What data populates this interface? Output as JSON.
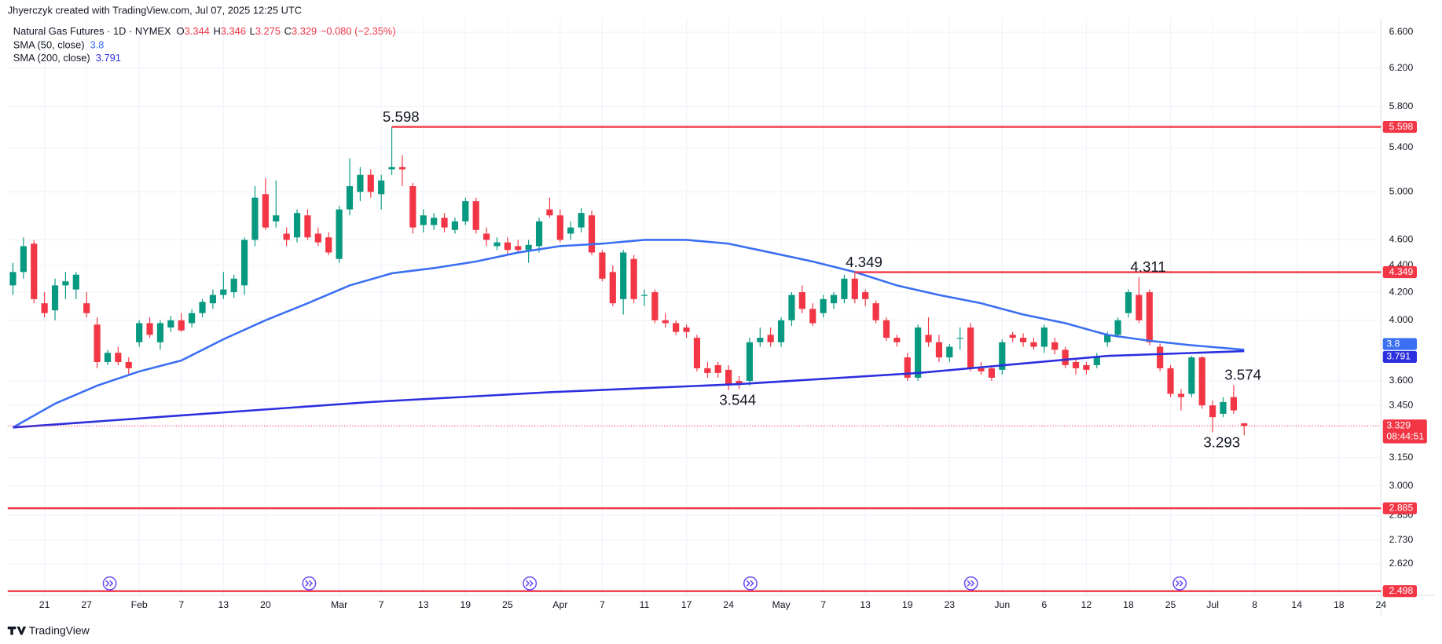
{
  "header": {
    "credit": "Jhyerczyk created with TradingView.com, Jul 07, 2025 12:25 UTC",
    "symbol": "Natural Gas Futures · 1D · NYMEX",
    "ohlc_labels": [
      "O",
      "H",
      "L",
      "C"
    ],
    "change": "−0.080 (−2.35%)",
    "brand": "TradingView"
  },
  "chart_data": {
    "type": "candlestick",
    "log_scale": true,
    "grid": true,
    "colors": {
      "up": "#089981",
      "down": "#f23645",
      "level": "#f23645"
    },
    "xlim": [
      -0.5,
      130
    ],
    "ylim": [
      2.48,
      6.76
    ],
    "yticks": [
      {
        "value": 6.6,
        "label": "6.600"
      },
      {
        "value": 6.2,
        "label": "6.200"
      },
      {
        "value": 5.8,
        "label": "5.800"
      },
      {
        "value": 5.4,
        "label": "5.400"
      },
      {
        "value": 5.0,
        "label": "5.000"
      },
      {
        "value": 4.6,
        "label": "4.600"
      },
      {
        "value": 4.4,
        "label": "4.400"
      },
      {
        "value": 4.2,
        "label": "4.200"
      },
      {
        "value": 4.0,
        "label": "4.000"
      },
      {
        "value": 3.6,
        "label": "3.600"
      },
      {
        "value": 3.45,
        "label": "3.450"
      },
      {
        "value": 3.15,
        "label": "3.150"
      },
      {
        "value": 3.0,
        "label": "3.000"
      },
      {
        "value": 2.85,
        "label": "2.850"
      },
      {
        "value": 2.73,
        "label": "2.730"
      },
      {
        "value": 2.62,
        "label": "2.620"
      }
    ],
    "xticks": [
      {
        "value": 3,
        "label": "21"
      },
      {
        "value": 7,
        "label": "27"
      },
      {
        "value": 12,
        "label": "Feb"
      },
      {
        "value": 16,
        "label": "7"
      },
      {
        "value": 20,
        "label": "13"
      },
      {
        "value": 24,
        "label": "20"
      },
      {
        "value": 31,
        "label": "Mar"
      },
      {
        "value": 35,
        "label": "7"
      },
      {
        "value": 39,
        "label": "13"
      },
      {
        "value": 43,
        "label": "19"
      },
      {
        "value": 47,
        "label": "25"
      },
      {
        "value": 52,
        "label": "Apr"
      },
      {
        "value": 56,
        "label": "7"
      },
      {
        "value": 60,
        "label": "11"
      },
      {
        "value": 64,
        "label": "17"
      },
      {
        "value": 68,
        "label": "24"
      },
      {
        "value": 73,
        "label": "May"
      },
      {
        "value": 77,
        "label": "7"
      },
      {
        "value": 81,
        "label": "13"
      },
      {
        "value": 85,
        "label": "19"
      },
      {
        "value": 89,
        "label": "23"
      },
      {
        "value": 94,
        "label": "Jun"
      },
      {
        "value": 98,
        "label": "6"
      },
      {
        "value": 102,
        "label": "12"
      },
      {
        "value": 106,
        "label": "18"
      },
      {
        "value": 110,
        "label": "25"
      },
      {
        "value": 114,
        "label": "Jul"
      },
      {
        "value": 118,
        "label": "8"
      },
      {
        "value": 122,
        "label": "14"
      },
      {
        "value": 126,
        "label": "18"
      },
      {
        "value": 130,
        "label": "24"
      }
    ],
    "candles": [
      [
        4.25,
        4.42,
        4.18,
        4.35
      ],
      [
        4.35,
        4.62,
        4.3,
        4.55
      ],
      [
        4.57,
        4.6,
        4.12,
        4.15
      ],
      [
        4.12,
        4.2,
        4.02,
        4.05
      ],
      [
        4.07,
        4.3,
        4.0,
        4.25
      ],
      [
        4.25,
        4.35,
        4.15,
        4.28
      ],
      [
        4.22,
        4.35,
        4.15,
        4.33
      ],
      [
        4.12,
        4.2,
        4.02,
        4.05
      ],
      [
        3.97,
        4.02,
        3.68,
        3.72
      ],
      [
        3.72,
        3.8,
        3.7,
        3.78
      ],
      [
        3.78,
        3.82,
        3.7,
        3.72
      ],
      [
        3.72,
        3.75,
        3.64,
        3.68
      ],
      [
        3.85,
        4.0,
        3.82,
        3.98
      ],
      [
        3.98,
        4.02,
        3.88,
        3.9
      ],
      [
        3.85,
        4.0,
        3.8,
        3.98
      ],
      [
        3.95,
        4.03,
        3.92,
        4.0
      ],
      [
        4.0,
        4.05,
        3.92,
        3.93
      ],
      [
        3.98,
        4.08,
        3.95,
        4.05
      ],
      [
        4.05,
        4.15,
        4.02,
        4.13
      ],
      [
        4.12,
        4.22,
        4.08,
        4.18
      ],
      [
        4.18,
        4.35,
        4.15,
        4.22
      ],
      [
        4.2,
        4.33,
        4.16,
        4.3
      ],
      [
        4.25,
        4.62,
        4.18,
        4.6
      ],
      [
        4.6,
        5.05,
        4.55,
        4.95
      ],
      [
        4.98,
        5.12,
        4.68,
        4.7
      ],
      [
        4.75,
        5.1,
        4.7,
        4.8
      ],
      [
        4.65,
        4.7,
        4.55,
        4.6
      ],
      [
        4.62,
        4.85,
        4.58,
        4.82
      ],
      [
        4.8,
        4.85,
        4.6,
        4.62
      ],
      [
        4.65,
        4.7,
        4.55,
        4.58
      ],
      [
        4.62,
        4.66,
        4.48,
        4.5
      ],
      [
        4.45,
        4.88,
        4.42,
        4.85
      ],
      [
        4.85,
        5.3,
        4.8,
        5.05
      ],
      [
        5.0,
        5.22,
        4.92,
        5.15
      ],
      [
        5.15,
        5.2,
        4.95,
        5.0
      ],
      [
        4.98,
        5.15,
        4.85,
        5.1
      ],
      [
        5.2,
        5.598,
        5.15,
        5.22
      ],
      [
        5.22,
        5.33,
        5.05,
        5.2
      ],
      [
        5.05,
        5.08,
        4.65,
        4.7
      ],
      [
        4.72,
        4.85,
        4.66,
        4.8
      ],
      [
        4.72,
        4.82,
        4.68,
        4.78
      ],
      [
        4.78,
        4.82,
        4.66,
        4.7
      ],
      [
        4.68,
        4.78,
        4.65,
        4.75
      ],
      [
        4.75,
        4.95,
        4.72,
        4.92
      ],
      [
        4.92,
        4.95,
        4.65,
        4.68
      ],
      [
        4.65,
        4.7,
        4.55,
        4.6
      ],
      [
        4.55,
        4.62,
        4.52,
        4.58
      ],
      [
        4.58,
        4.62,
        4.48,
        4.52
      ],
      [
        4.55,
        4.6,
        4.5,
        4.52
      ],
      [
        4.52,
        4.6,
        4.42,
        4.56
      ],
      [
        4.55,
        4.78,
        4.5,
        4.75
      ],
      [
        4.85,
        4.95,
        4.78,
        4.8
      ],
      [
        4.8,
        4.85,
        4.58,
        4.6
      ],
      [
        4.65,
        4.75,
        4.6,
        4.7
      ],
      [
        4.7,
        4.86,
        4.66,
        4.82
      ],
      [
        4.8,
        4.84,
        4.48,
        4.5
      ],
      [
        4.5,
        4.52,
        4.28,
        4.3
      ],
      [
        4.35,
        4.4,
        4.1,
        4.12
      ],
      [
        4.15,
        4.52,
        4.04,
        4.5
      ],
      [
        4.45,
        4.48,
        4.12,
        4.15
      ],
      [
        4.18,
        4.22,
        4.1,
        4.18
      ],
      [
        4.2,
        4.22,
        3.98,
        4.0
      ],
      [
        4.0,
        4.05,
        3.95,
        3.98
      ],
      [
        3.98,
        4.0,
        3.9,
        3.92
      ],
      [
        3.95,
        3.97,
        3.88,
        3.92
      ],
      [
        3.88,
        3.9,
        3.66,
        3.68
      ],
      [
        3.68,
        3.72,
        3.62,
        3.65
      ],
      [
        3.7,
        3.72,
        3.62,
        3.65
      ],
      [
        3.67,
        3.7,
        3.544,
        3.58
      ],
      [
        3.6,
        3.63,
        3.55,
        3.58
      ],
      [
        3.6,
        3.88,
        3.57,
        3.85
      ],
      [
        3.85,
        3.95,
        3.82,
        3.88
      ],
      [
        3.9,
        3.95,
        3.82,
        3.85
      ],
      [
        3.85,
        4.02,
        3.82,
        4.0
      ],
      [
        4.0,
        4.2,
        3.96,
        4.18
      ],
      [
        4.2,
        4.25,
        4.05,
        4.08
      ],
      [
        4.08,
        4.12,
        3.96,
        3.98
      ],
      [
        4.05,
        4.18,
        4.02,
        4.15
      ],
      [
        4.12,
        4.2,
        4.08,
        4.18
      ],
      [
        4.15,
        4.33,
        4.12,
        4.3
      ],
      [
        4.3,
        4.349,
        4.12,
        4.15
      ],
      [
        4.2,
        4.22,
        4.1,
        4.15
      ],
      [
        4.12,
        4.14,
        3.98,
        4.0
      ],
      [
        4.0,
        4.02,
        3.86,
        3.88
      ],
      [
        3.88,
        3.9,
        3.82,
        3.85
      ],
      [
        3.75,
        3.78,
        3.6,
        3.62
      ],
      [
        3.62,
        3.97,
        3.6,
        3.95
      ],
      [
        3.9,
        4.02,
        3.82,
        3.85
      ],
      [
        3.85,
        3.9,
        3.72,
        3.75
      ],
      [
        3.75,
        3.84,
        3.72,
        3.82
      ],
      [
        3.88,
        3.95,
        3.8,
        3.88
      ],
      [
        3.95,
        3.98,
        3.66,
        3.68
      ],
      [
        3.68,
        3.72,
        3.64,
        3.66
      ],
      [
        3.68,
        3.7,
        3.6,
        3.62
      ],
      [
        3.67,
        3.87,
        3.64,
        3.85
      ],
      [
        3.9,
        3.92,
        3.85,
        3.88
      ],
      [
        3.88,
        3.91,
        3.82,
        3.85
      ],
      [
        3.85,
        3.88,
        3.8,
        3.82
      ],
      [
        3.82,
        3.97,
        3.78,
        3.95
      ],
      [
        3.85,
        3.88,
        3.77,
        3.8
      ],
      [
        3.8,
        3.82,
        3.68,
        3.7
      ],
      [
        3.72,
        3.74,
        3.64,
        3.68
      ],
      [
        3.7,
        3.72,
        3.64,
        3.67
      ],
      [
        3.7,
        3.78,
        3.68,
        3.75
      ],
      [
        3.85,
        3.92,
        3.82,
        3.9
      ],
      [
        3.9,
        4.02,
        3.88,
        4.0
      ],
      [
        4.05,
        4.22,
        4.02,
        4.2
      ],
      [
        4.18,
        4.311,
        3.98,
        4.0
      ],
      [
        4.2,
        4.22,
        3.83,
        3.85
      ],
      [
        3.82,
        3.84,
        3.66,
        3.68
      ],
      [
        3.68,
        3.7,
        3.5,
        3.52
      ],
      [
        3.52,
        3.55,
        3.42,
        3.5
      ],
      [
        3.52,
        3.76,
        3.5,
        3.75
      ],
      [
        3.75,
        3.76,
        3.43,
        3.45
      ],
      [
        3.45,
        3.48,
        3.293,
        3.38
      ],
      [
        3.4,
        3.5,
        3.38,
        3.47
      ],
      [
        3.5,
        3.574,
        3.4,
        3.42
      ],
      [
        3.344,
        3.346,
        3.275,
        3.329
      ]
    ],
    "series": [
      {
        "name": "SMA (50, close)",
        "color": "#3a6ff2",
        "last": 3.8,
        "x": [
          0,
          4,
          8,
          12,
          16,
          20,
          24,
          28,
          32,
          36,
          40,
          44,
          48,
          52,
          56,
          60,
          64,
          68,
          72,
          76,
          80,
          84,
          88,
          92,
          96,
          100,
          104,
          108,
          112,
          117
        ],
        "values": [
          3.32,
          3.46,
          3.57,
          3.66,
          3.73,
          3.87,
          4.0,
          4.12,
          4.25,
          4.34,
          4.38,
          4.43,
          4.5,
          4.55,
          4.57,
          4.6,
          4.6,
          4.57,
          4.5,
          4.43,
          4.35,
          4.25,
          4.18,
          4.12,
          4.04,
          3.98,
          3.9,
          3.86,
          3.83,
          3.8
        ]
      },
      {
        "name": "SMA (200, close)",
        "color": "#2b2fde",
        "last": 3.791,
        "x": [
          0,
          16,
          34,
          51,
          69,
          86,
          104,
          117
        ],
        "values": [
          3.32,
          3.39,
          3.47,
          3.53,
          3.58,
          3.65,
          3.76,
          3.791
        ]
      }
    ],
    "levels": [
      5.598,
      4.349,
      2.885,
      2.498
    ],
    "annotations": [
      5.598,
      4.349,
      4.311,
      3.544,
      3.574,
      3.293
    ],
    "countdown": "08:44:51"
  }
}
